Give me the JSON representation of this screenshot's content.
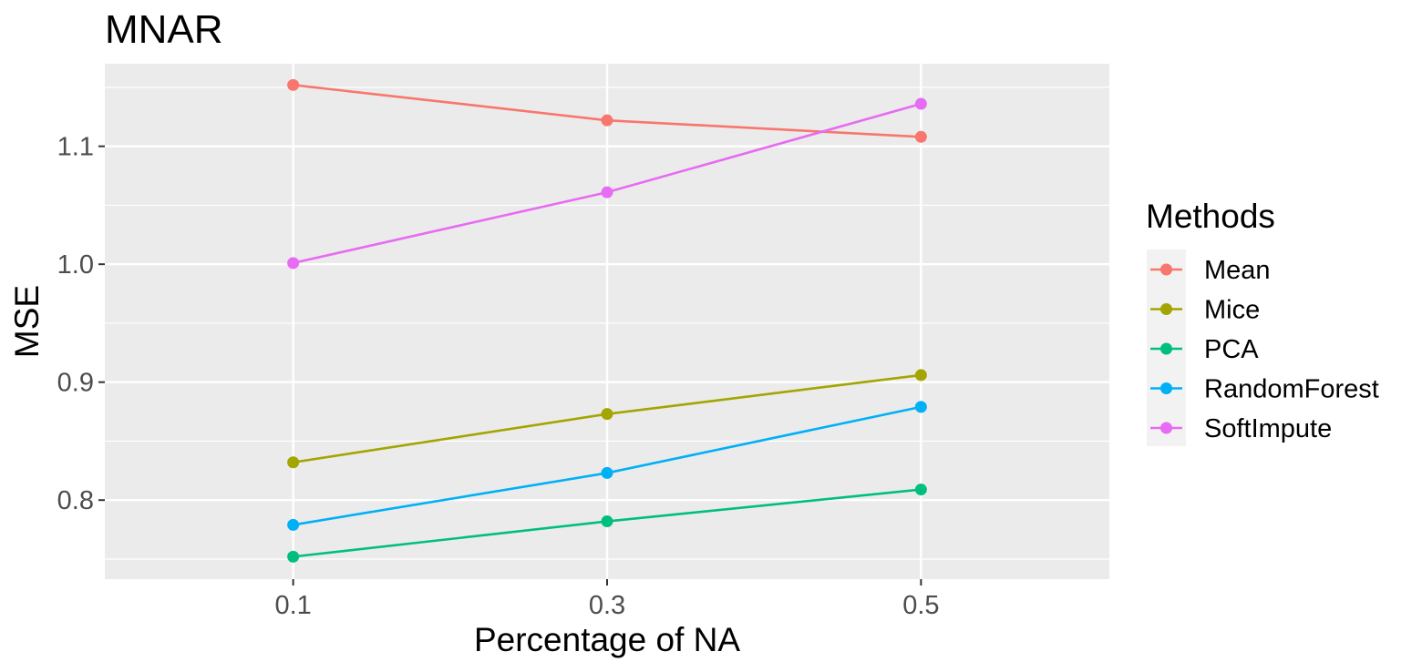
{
  "chart_data": {
    "type": "line",
    "title": "MNAR",
    "xlabel": "Percentage of NA",
    "ylabel": "MSE",
    "categories": [
      "0.1",
      "0.3",
      "0.5"
    ],
    "y_ticks": [
      "0.8",
      "0.9",
      "1.0",
      "1.1"
    ],
    "ylim": [
      0.733,
      1.17
    ],
    "grid": true,
    "legend": {
      "title": "Methods",
      "placement": "right"
    },
    "series": [
      {
        "name": "Mean",
        "color": "#F8766D",
        "values": [
          1.152,
          1.122,
          1.108
        ]
      },
      {
        "name": "Mice",
        "color": "#A3A500",
        "values": [
          0.832,
          0.873,
          0.906
        ]
      },
      {
        "name": "PCA",
        "color": "#00BF7D",
        "values": [
          0.752,
          0.782,
          0.809
        ]
      },
      {
        "name": "RandomForest",
        "color": "#00B0F6",
        "values": [
          0.779,
          0.823,
          0.879
        ]
      },
      {
        "name": "SoftImpute",
        "color": "#E76BF3",
        "values": [
          1.001,
          1.061,
          1.136
        ]
      }
    ]
  }
}
